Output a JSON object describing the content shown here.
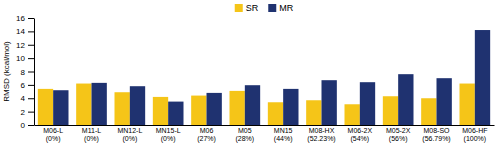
{
  "chart_data": {
    "type": "bar",
    "categories": [
      "M06-L\n(0%)",
      "M11-L\n(0%)",
      "MN12-L\n(0%)",
      "MN15-L\n(0%)",
      "M06\n(27%)",
      "M05\n(28%)",
      "MN15\n(44%)",
      "M08-HX\n(52.23%)",
      "M06-2X\n(54%)",
      "M05-2X\n(56%)",
      "M08-SO\n(56.79%)",
      "M06-HF\n(100%)"
    ],
    "series": [
      {
        "name": "SR",
        "color": "#F5C518",
        "values": [
          5.4,
          6.2,
          4.9,
          4.2,
          4.4,
          5.1,
          3.4,
          3.7,
          3.1,
          4.3,
          4.0,
          6.2
        ]
      },
      {
        "name": "MR",
        "color": "#1F3270",
        "values": [
          5.2,
          6.3,
          5.8,
          3.5,
          4.8,
          5.95,
          5.4,
          6.7,
          6.4,
          7.6,
          7.0,
          14.2
        ]
      }
    ],
    "y_label": "RMSD (kcal/mol)",
    "ylim": [
      0,
      16
    ],
    "yticks": [
      0,
      2,
      4,
      6,
      8,
      10,
      12,
      14,
      16
    ],
    "grid": false,
    "legend": "top"
  }
}
